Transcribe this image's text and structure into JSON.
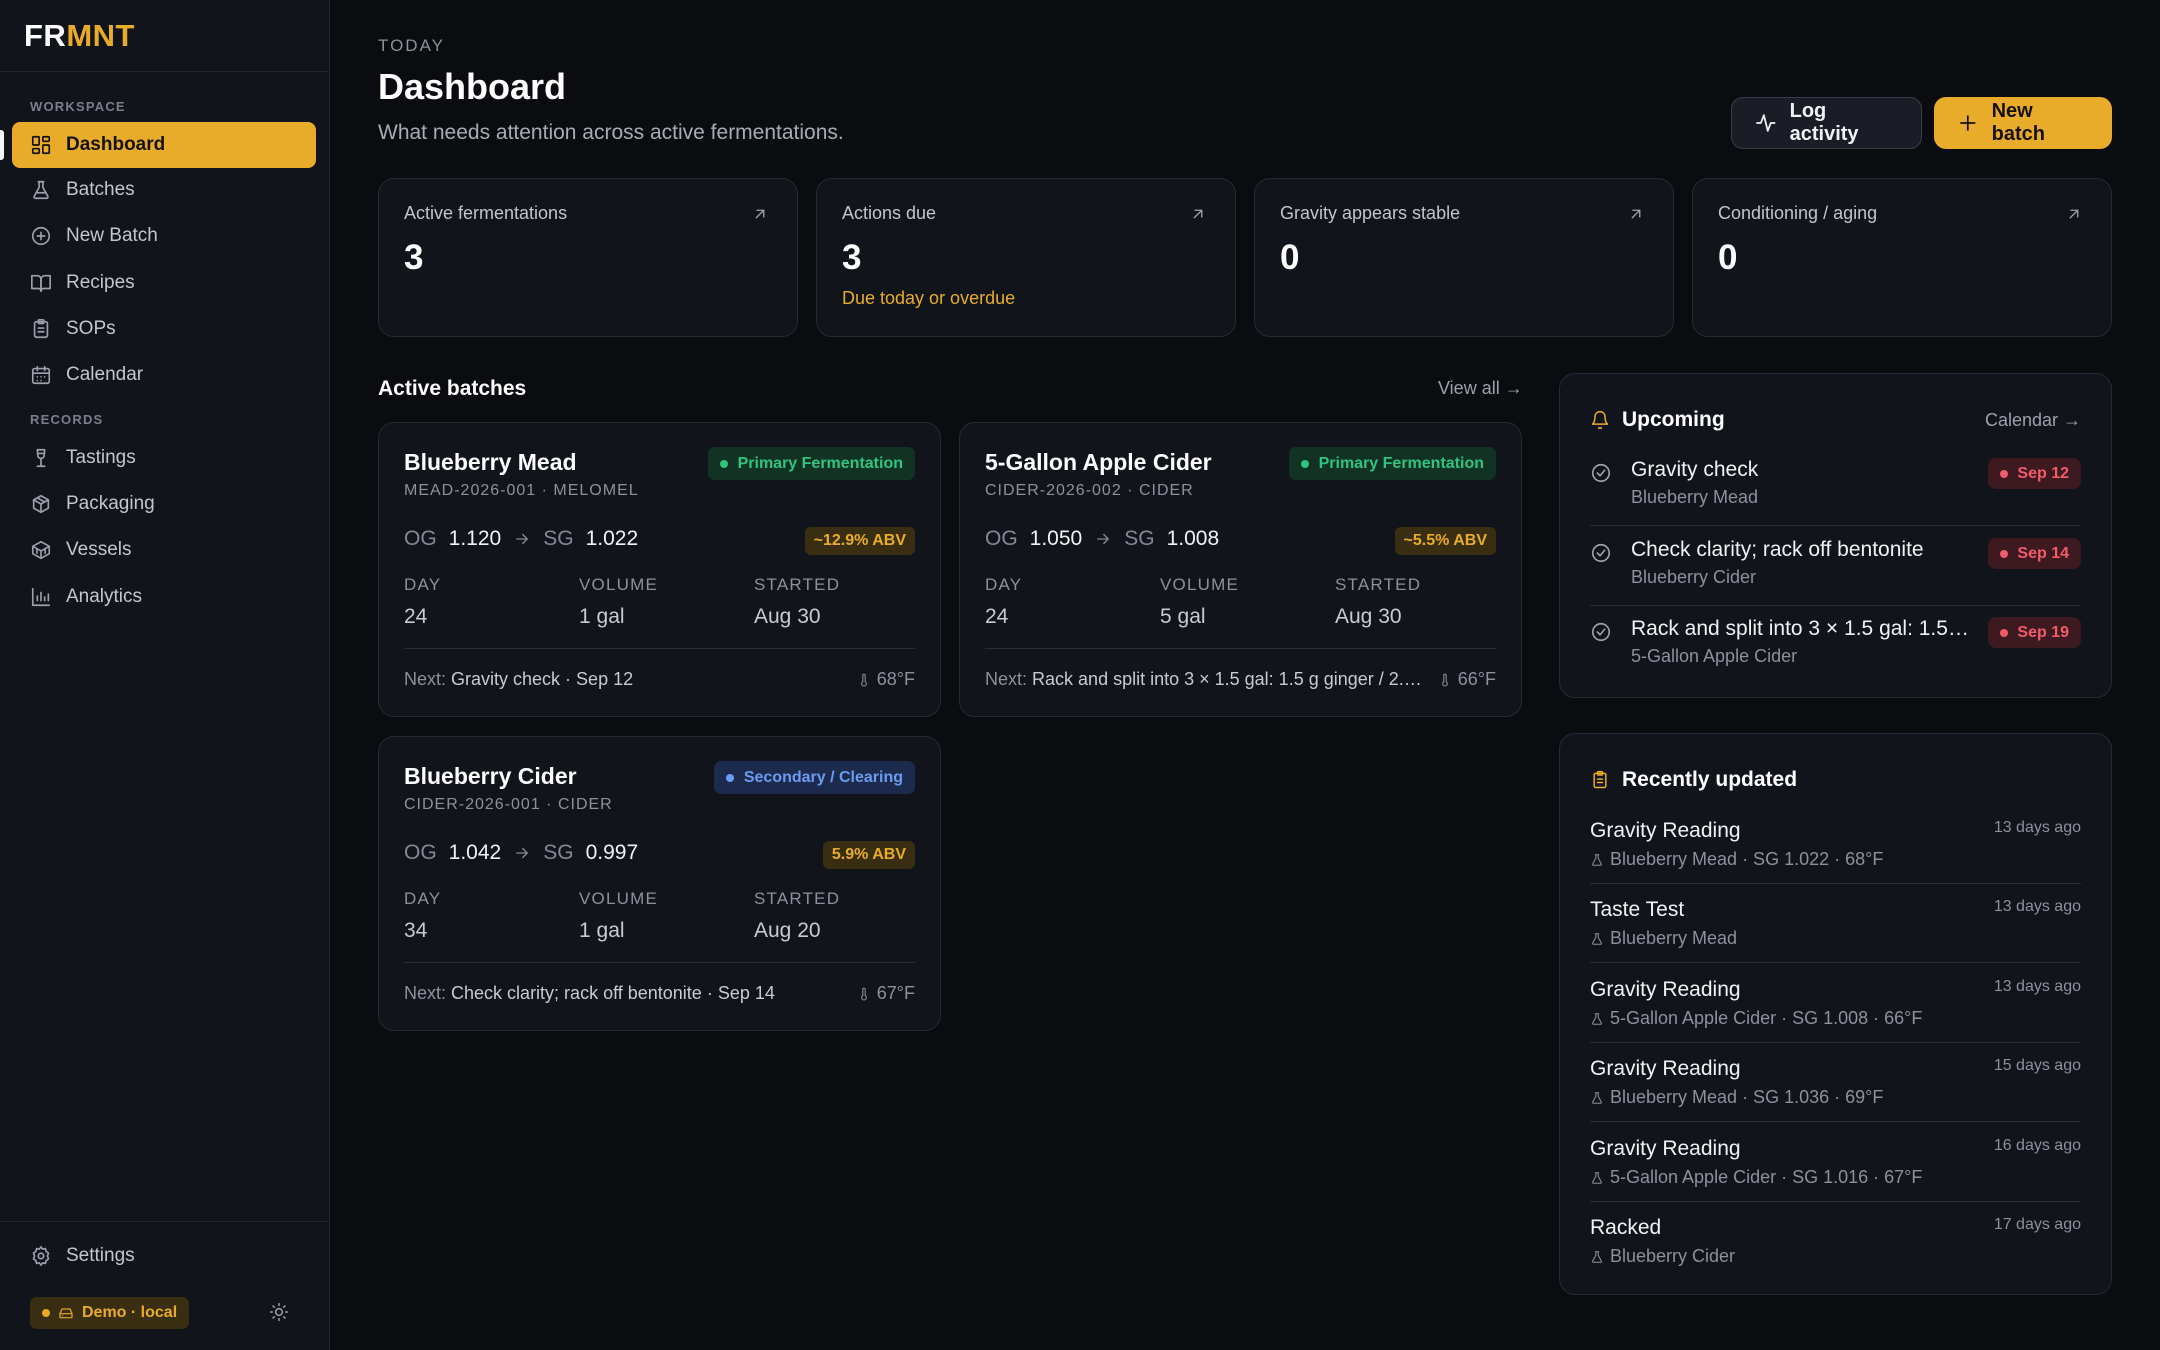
{
  "brand": {
    "part1": "FR",
    "part2": "MNT"
  },
  "sidebar": {
    "workspace_label": "WORKSPACE",
    "records_label": "RECORDS",
    "workspace_items": [
      {
        "label": "Dashboard",
        "icon": "dashboard-icon",
        "active": true
      },
      {
        "label": "Batches",
        "icon": "flask-icon"
      },
      {
        "label": "New Batch",
        "icon": "plus-circle-icon"
      },
      {
        "label": "Recipes",
        "icon": "book-icon"
      },
      {
        "label": "SOPs",
        "icon": "clipboard-icon"
      },
      {
        "label": "Calendar",
        "icon": "calendar-icon"
      }
    ],
    "records_items": [
      {
        "label": "Tastings",
        "icon": "wine-glass-icon"
      },
      {
        "label": "Packaging",
        "icon": "package-icon"
      },
      {
        "label": "Vessels",
        "icon": "boxes-icon"
      },
      {
        "label": "Analytics",
        "icon": "bar-chart-icon"
      }
    ],
    "settings_label": "Settings",
    "demo_badge": "Demo · local"
  },
  "header": {
    "eyebrow": "TODAY",
    "title": "Dashboard",
    "subtitle": "What needs attention across active fermentations.",
    "log_activity_label": "Log activity",
    "new_batch_label": "New batch"
  },
  "stats": [
    {
      "label": "Active fermentations",
      "value": "3",
      "sub": ""
    },
    {
      "label": "Actions due",
      "value": "3",
      "sub": "Due today or overdue"
    },
    {
      "label": "Gravity appears stable",
      "value": "0",
      "sub": ""
    },
    {
      "label": "Conditioning / aging",
      "value": "0",
      "sub": ""
    }
  ],
  "active_batches": {
    "title": "Active batches",
    "view_all": "View all →",
    "og_label": "OG",
    "sg_label": "SG",
    "day_label": "DAY",
    "volume_label": "VOLUME",
    "started_label": "STARTED",
    "next_label": "Next:",
    "items": [
      {
        "name": "Blueberry Mead",
        "code": "MEAD-2026-001 · MELOMEL",
        "status": "Primary Fermentation",
        "status_color": "#2fc47f",
        "og": "1.120",
        "sg": "1.022",
        "abv": "~12.9% ABV",
        "day": "24",
        "volume": "1 gal",
        "started": "Aug 30",
        "next": "Gravity check · Sep 12",
        "temp": "68°F"
      },
      {
        "name": "5-Gallon Apple Cider",
        "code": "CIDER-2026-002 · CIDER",
        "status": "Primary Fermentation",
        "status_color": "#2fc47f",
        "og": "1.050",
        "sg": "1.008",
        "abv": "~5.5% ABV",
        "day": "24",
        "volume": "5 gal",
        "started": "Aug 30",
        "next": "Rack and split into 3 × 1.5 gal: 1.5 g ginger / 2.…",
        "temp": "66°F"
      },
      {
        "name": "Blueberry Cider",
        "code": "CIDER-2026-001 · CIDER",
        "status": "Secondary / Clearing",
        "status_color": "#6d9bf0",
        "og": "1.042",
        "sg": "0.997",
        "abv": "5.9% ABV",
        "day": "34",
        "volume": "1 gal",
        "started": "Aug 20",
        "next": "Check clarity; rack off bentonite · Sep 14",
        "temp": "67°F"
      }
    ]
  },
  "upcoming": {
    "title": "Upcoming",
    "link": "Calendar →",
    "items": [
      {
        "title": "Gravity check",
        "batch": "Blueberry Mead",
        "date": "Sep 12"
      },
      {
        "title": "Check clarity; rack off bentonite",
        "batch": "Blueberry Cider",
        "date": "Sep 14"
      },
      {
        "title": "Rack and split into 3 × 1.5 gal: 1.5…",
        "batch": "5-Gallon Apple Cider",
        "date": "Sep 19"
      }
    ]
  },
  "recent": {
    "title": "Recently updated",
    "items": [
      {
        "title": "Gravity Reading",
        "detail": "Blueberry Mead · SG 1.022 · 68°F",
        "when": "13 days ago"
      },
      {
        "title": "Taste Test",
        "detail": "Blueberry Mead",
        "when": "13 days ago"
      },
      {
        "title": "Gravity Reading",
        "detail": "5-Gallon Apple Cider · SG 1.008 · 66°F",
        "when": "13 days ago"
      },
      {
        "title": "Gravity Reading",
        "detail": "Blueberry Mead · SG 1.036 · 69°F",
        "when": "15 days ago"
      },
      {
        "title": "Gravity Reading",
        "detail": "5-Gallon Apple Cider · SG 1.016 · 67°F",
        "when": "16 days ago"
      },
      {
        "title": "Racked",
        "detail": "Blueberry Cider",
        "when": "17 days ago"
      }
    ]
  },
  "colors": {
    "accent": "#e8ac2a",
    "danger": "#f25c6a",
    "success": "#2fc47f",
    "info": "#6d9bf0"
  }
}
